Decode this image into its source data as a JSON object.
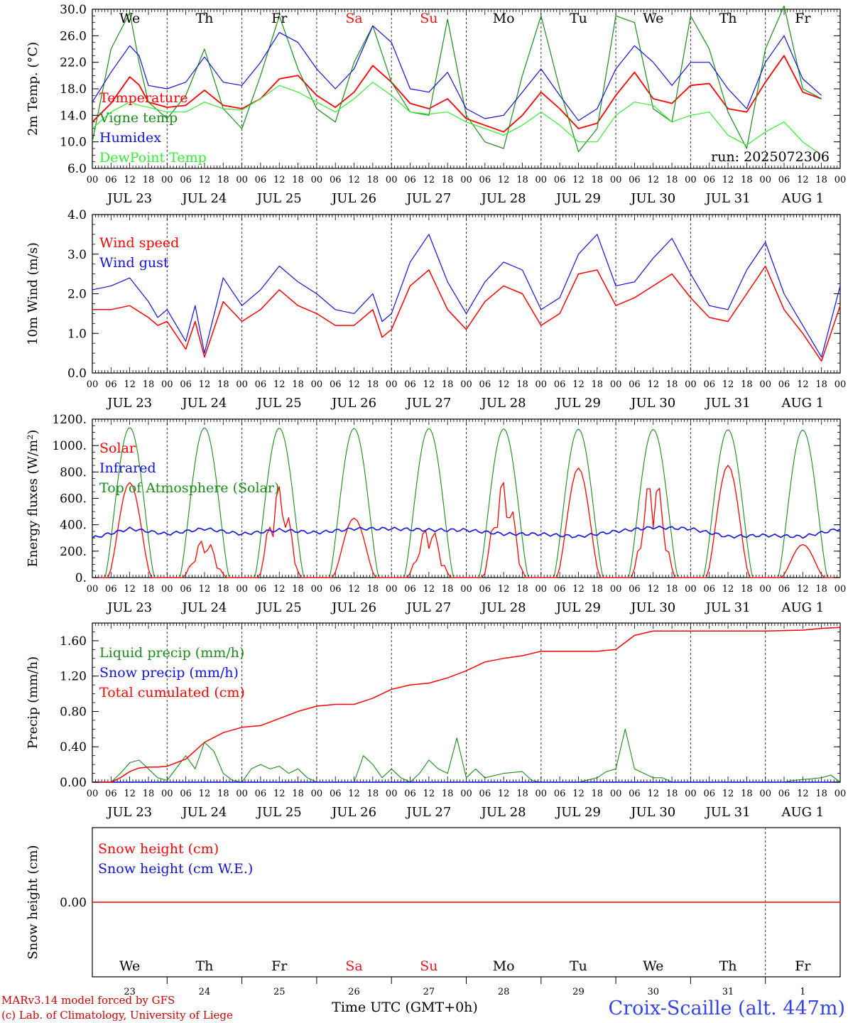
{
  "days": [
    "We",
    "Th",
    "Fr",
    "Sa",
    "Su",
    "Mo",
    "Tu",
    "We",
    "Th",
    "Fr"
  ],
  "day_colors": [
    "#000000",
    "#000000",
    "#000000",
    "#e41a1c",
    "#e41a1c",
    "#000000",
    "#000000",
    "#000000",
    "#000000",
    "#000000"
  ],
  "dates": [
    "JUL 23",
    "JUL 24",
    "JUL 25",
    "JUL 26",
    "JUL 27",
    "JUL 28",
    "JUL 29",
    "JUL 30",
    "JUL 31",
    "AUG  1"
  ],
  "day_numbers": [
    "23",
    "24",
    "25",
    "26",
    "27",
    "28",
    "29",
    "30",
    "31",
    "1"
  ],
  "hour_labels": [
    "00",
    "06",
    "12",
    "18"
  ],
  "run_label": "run: 2025072306",
  "footer": {
    "model_line": "MARv3.14 model forced by GFS",
    "lab_line": "(c) Lab. of Climatology, University of Liege",
    "axis_title": "Time UTC (GMT+0h)",
    "station": "Croix-Scaille (alt. 447m)"
  },
  "colors": {
    "red": "#ff0000",
    "green": "#1a8c1a",
    "blue": "#1010e0",
    "lightgreen": "#33ee33",
    "station": "#3344ee"
  },
  "chart_data": [
    {
      "type": "line",
      "ylabel": "2m Temp. (°C)",
      "ylim": [
        6,
        30
      ],
      "yticks": [
        "6.0",
        "10.0",
        "14.0",
        "18.0",
        "22.0",
        "26.0",
        "30.0"
      ],
      "series": [
        {
          "name": "Temperature",
          "color": "red",
          "x": [
            0,
            6,
            12,
            15,
            18,
            24,
            30,
            36,
            42,
            48,
            54,
            60,
            66,
            72,
            78,
            84,
            90,
            96,
            102,
            108,
            114,
            120,
            126,
            132,
            138,
            144,
            150,
            156,
            162,
            168,
            174,
            180,
            186,
            192,
            198,
            204,
            210,
            216,
            222,
            228,
            234
          ],
          "values": [
            13.0,
            15.8,
            19.8,
            18.6,
            16.0,
            15.2,
            15.5,
            17.8,
            15.5,
            15.0,
            16.5,
            19.5,
            20.0,
            17.0,
            15.2,
            17.5,
            21.5,
            19.0,
            15.8,
            15.0,
            16.5,
            13.5,
            12.5,
            11.5,
            14.0,
            17.5,
            15.0,
            12.0,
            12.8,
            17.0,
            20.5,
            16.5,
            15.8,
            18.5,
            18.8,
            15.0,
            14.5,
            19.0,
            23.0,
            17.5,
            16.5
          ]
        },
        {
          "name": "Vigne temp",
          "color": "green",
          "x": [
            0,
            6,
            12,
            15,
            18,
            24,
            30,
            36,
            42,
            48,
            54,
            60,
            66,
            72,
            78,
            84,
            90,
            96,
            102,
            108,
            114,
            120,
            126,
            132,
            138,
            144,
            150,
            156,
            162,
            168,
            174,
            180,
            186,
            192,
            198,
            204,
            210,
            216,
            222,
            228,
            234
          ],
          "values": [
            10.0,
            24.0,
            29.5,
            22.0,
            16.0,
            13.5,
            17.0,
            24.0,
            15.0,
            12.0,
            20.0,
            29.0,
            21.0,
            15.0,
            13.0,
            22.0,
            27.5,
            19.0,
            14.5,
            14.0,
            28.5,
            14.0,
            10.0,
            9.0,
            20.0,
            29.0,
            18.0,
            8.5,
            12.0,
            29.0,
            28.0,
            15.0,
            13.0,
            29.0,
            24.0,
            14.5,
            9.0,
            24.0,
            30.5,
            18.0,
            16.5
          ]
        },
        {
          "name": "Humidex",
          "color": "blue",
          "x": [
            0,
            6,
            12,
            15,
            18,
            24,
            30,
            36,
            42,
            48,
            54,
            60,
            66,
            72,
            78,
            84,
            90,
            96,
            102,
            108,
            114,
            120,
            126,
            132,
            138,
            144,
            150,
            156,
            162,
            168,
            174,
            180,
            186,
            192,
            198,
            204,
            210,
            216,
            222,
            228,
            234
          ],
          "values": [
            16.0,
            20.5,
            24.5,
            23.0,
            18.5,
            18.0,
            19.0,
            22.8,
            19.0,
            18.5,
            22.0,
            26.5,
            25.0,
            21.0,
            18.0,
            21.0,
            27.5,
            25.0,
            18.0,
            17.5,
            20.5,
            15.0,
            13.5,
            14.0,
            17.5,
            21.0,
            17.0,
            13.2,
            15.0,
            21.0,
            24.5,
            22.0,
            18.5,
            22.0,
            22.0,
            18.0,
            15.0,
            22.0,
            26.0,
            19.5,
            17.0
          ]
        },
        {
          "name": "DewPoint Temp",
          "color": "lightgreen",
          "x": [
            0,
            6,
            12,
            15,
            18,
            24,
            30,
            36,
            42,
            48,
            54,
            60,
            66,
            72,
            78,
            84,
            90,
            96,
            102,
            108,
            114,
            120,
            126,
            132,
            138,
            144,
            150,
            156,
            162,
            168,
            174,
            180,
            186,
            192,
            198,
            204,
            210,
            216,
            222,
            228,
            234
          ],
          "values": [
            12.0,
            14.5,
            16.0,
            15.5,
            15.2,
            14.5,
            14.5,
            16.0,
            15.0,
            14.8,
            16.5,
            18.5,
            17.5,
            16.0,
            14.5,
            16.5,
            19.0,
            17.0,
            14.5,
            14.2,
            14.5,
            13.0,
            12.0,
            11.0,
            12.5,
            14.5,
            12.5,
            10.0,
            10.0,
            14.0,
            16.0,
            15.5,
            13.0,
            14.0,
            14.5,
            11.0,
            9.5,
            11.5,
            13.0,
            10.0,
            8.0
          ]
        }
      ]
    },
    {
      "type": "line",
      "ylabel": "10m Wind (m/s)",
      "ylim": [
        0,
        4
      ],
      "yticks": [
        "0.0",
        "1.0",
        "2.0",
        "3.0",
        "4.0"
      ],
      "series": [
        {
          "name": "Wind speed",
          "color": "red",
          "x": [
            0,
            6,
            12,
            18,
            21,
            24,
            30,
            33,
            36,
            42,
            48,
            54,
            60,
            66,
            72,
            78,
            84,
            90,
            93,
            96,
            102,
            108,
            114,
            120,
            126,
            132,
            138,
            144,
            150,
            156,
            162,
            168,
            174,
            180,
            186,
            192,
            198,
            204,
            210,
            216,
            222,
            228,
            234,
            240
          ],
          "values": [
            1.6,
            1.6,
            1.7,
            1.4,
            1.2,
            1.3,
            0.6,
            1.3,
            0.4,
            1.8,
            1.3,
            1.6,
            2.1,
            1.7,
            1.5,
            1.2,
            1.2,
            1.6,
            0.9,
            1.1,
            2.2,
            2.6,
            1.6,
            1.1,
            1.8,
            2.2,
            2.0,
            1.2,
            1.5,
            2.5,
            2.6,
            1.7,
            1.9,
            2.2,
            2.5,
            1.9,
            1.4,
            1.3,
            2.0,
            2.7,
            1.6,
            1.0,
            0.3,
            1.7
          ]
        },
        {
          "name": "Wind gust",
          "color": "blue",
          "x": [
            0,
            6,
            12,
            18,
            21,
            24,
            30,
            33,
            36,
            42,
            48,
            54,
            60,
            66,
            72,
            78,
            84,
            90,
            93,
            96,
            102,
            108,
            114,
            120,
            126,
            132,
            138,
            144,
            150,
            156,
            162,
            168,
            174,
            180,
            186,
            192,
            198,
            204,
            210,
            216,
            222,
            228,
            234,
            240
          ],
          "values": [
            2.1,
            2.2,
            2.4,
            1.8,
            1.4,
            1.6,
            0.8,
            1.7,
            0.5,
            2.4,
            1.7,
            2.1,
            2.7,
            2.3,
            2.0,
            1.6,
            1.5,
            2.0,
            1.3,
            1.5,
            2.8,
            3.5,
            2.3,
            1.5,
            2.3,
            2.8,
            2.6,
            1.6,
            1.9,
            3.0,
            3.5,
            2.2,
            2.3,
            2.9,
            3.4,
            2.5,
            1.7,
            1.6,
            2.6,
            3.3,
            2.0,
            1.2,
            0.4,
            2.2
          ]
        }
      ]
    },
    {
      "type": "line",
      "ylabel": "Energy fluxes (W/m²)",
      "ylim": [
        0,
        1200
      ],
      "yticks": [
        "0.",
        "200.",
        "400.",
        "600.",
        "800.",
        "1000.",
        "1200."
      ],
      "series": [
        {
          "name": "Solar",
          "color": "red",
          "day_peaks": [
            720,
            300,
            700,
            450,
            400,
            750,
            830,
            800,
            850,
            250
          ]
        },
        {
          "name": "Infrared",
          "color": "blue",
          "x": [
            0,
            12,
            24,
            36,
            48,
            60,
            72,
            84,
            96,
            108,
            120,
            132,
            144,
            156,
            168,
            180,
            192,
            204,
            216,
            228,
            240
          ],
          "values": [
            300,
            370,
            330,
            370,
            330,
            360,
            340,
            370,
            370,
            360,
            360,
            330,
            330,
            310,
            350,
            380,
            370,
            310,
            320,
            310,
            370
          ]
        },
        {
          "name": "Top of Atmosphere (Solar)",
          "color": "green",
          "day_peaks": [
            1135,
            1133,
            1131,
            1129,
            1127,
            1125,
            1123,
            1121,
            1119,
            1117
          ]
        }
      ]
    },
    {
      "type": "line",
      "ylabel": "Precip (mm/h)",
      "ylim": [
        0,
        1.8
      ],
      "yticks": [
        "0.00",
        "0.40",
        "0.80",
        "1.20",
        "1.60"
      ],
      "series": [
        {
          "name": "Liquid precip (mm/h)",
          "color": "green",
          "x": [
            0,
            6,
            9,
            12,
            15,
            18,
            21,
            24,
            30,
            33,
            36,
            39,
            42,
            45,
            48,
            51,
            54,
            57,
            60,
            63,
            66,
            69,
            72,
            75,
            78,
            84,
            87,
            90,
            93,
            96,
            99,
            102,
            105,
            108,
            111,
            114,
            117,
            120,
            123,
            126,
            132,
            138,
            141,
            144,
            150,
            156,
            162,
            165,
            168,
            171,
            174,
            177,
            180,
            183,
            186,
            192,
            198,
            204,
            210,
            216,
            222,
            225,
            228,
            234,
            237,
            240
          ],
          "values": [
            0,
            0,
            0.1,
            0.22,
            0.25,
            0.15,
            0.05,
            0.02,
            0.3,
            0.15,
            0.45,
            0.35,
            0.1,
            0.02,
            0,
            0.15,
            0.2,
            0.15,
            0.18,
            0.1,
            0.15,
            0.05,
            0,
            0,
            0,
            0,
            0.3,
            0.2,
            0.05,
            0.15,
            0.05,
            0,
            0.1,
            0.25,
            0.15,
            0.1,
            0.5,
            0.05,
            0.15,
            0.05,
            0.1,
            0.12,
            0.02,
            0,
            0,
            0,
            0.05,
            0.12,
            0.15,
            0.6,
            0.15,
            0.1,
            0.05,
            0.05,
            0,
            0,
            0,
            0,
            0,
            0,
            0,
            0.02,
            0.03,
            0.05,
            0.08,
            0
          ]
        },
        {
          "name": "Snow precip (mm/h)",
          "color": "blue",
          "x": [
            0,
            240
          ],
          "values": [
            0,
            0
          ]
        },
        {
          "name": "Total cumulated (cm)",
          "color": "red",
          "x": [
            0,
            6,
            9,
            12,
            15,
            18,
            21,
            24,
            30,
            36,
            42,
            48,
            54,
            60,
            66,
            72,
            78,
            84,
            90,
            96,
            102,
            108,
            114,
            120,
            126,
            132,
            138,
            144,
            150,
            156,
            162,
            168,
            171,
            174,
            180,
            192,
            216,
            228,
            234,
            240
          ],
          "values": [
            0,
            0,
            0.05,
            0.12,
            0.16,
            0.17,
            0.17,
            0.18,
            0.26,
            0.45,
            0.56,
            0.62,
            0.64,
            0.72,
            0.8,
            0.86,
            0.88,
            0.88,
            0.95,
            1.05,
            1.1,
            1.12,
            1.18,
            1.26,
            1.36,
            1.4,
            1.43,
            1.48,
            1.48,
            1.48,
            1.48,
            1.5,
            1.58,
            1.66,
            1.71,
            1.71,
            1.71,
            1.72,
            1.74,
            1.75
          ]
        }
      ]
    },
    {
      "type": "line",
      "ylabel": "Snow height (cm)",
      "yticks": [
        "0.00"
      ],
      "series": [
        {
          "name": "Snow height (cm)",
          "color": "red",
          "x": [
            0,
            240
          ],
          "values": [
            0,
            0
          ]
        },
        {
          "name": "Snow height (cm W.E.)",
          "color": "blue",
          "x": [
            0,
            240
          ],
          "values": [
            0,
            0
          ]
        }
      ]
    }
  ]
}
